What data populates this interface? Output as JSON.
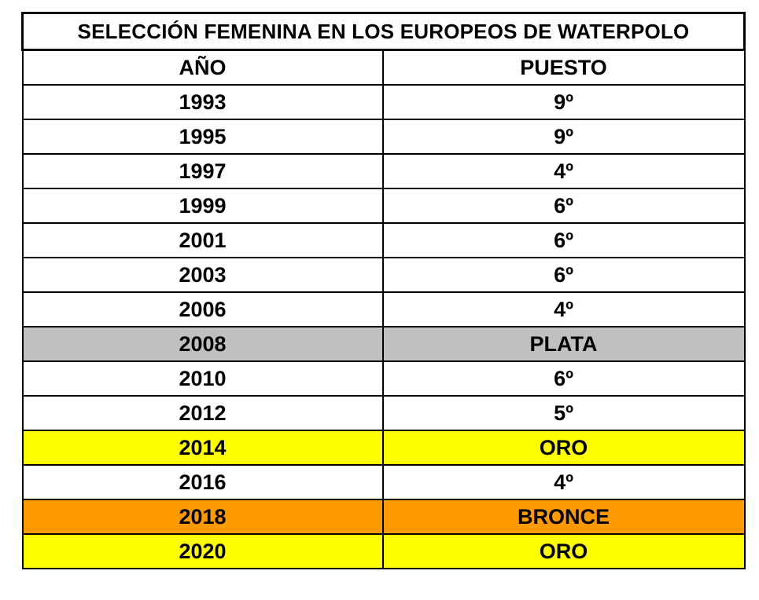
{
  "table": {
    "title": "SELECCIÓN FEMENINA EN LOS EUROPEOS DE WATERPOLO",
    "headers": [
      "AÑO",
      "PUESTO"
    ],
    "rows": [
      {
        "year": "1993",
        "place": "9º",
        "highlight": "#ffffff"
      },
      {
        "year": "1995",
        "place": "9º",
        "highlight": "#ffffff"
      },
      {
        "year": "1997",
        "place": "4º",
        "highlight": "#ffffff"
      },
      {
        "year": "1999",
        "place": "6º",
        "highlight": "#ffffff"
      },
      {
        "year": "2001",
        "place": "6º",
        "highlight": "#ffffff"
      },
      {
        "year": "2003",
        "place": "6º",
        "highlight": "#ffffff"
      },
      {
        "year": "2006",
        "place": "4º",
        "highlight": "#ffffff"
      },
      {
        "year": "2008",
        "place": "PLATA",
        "highlight": "#c0c0c0"
      },
      {
        "year": "2010",
        "place": "6º",
        "highlight": "#ffffff"
      },
      {
        "year": "2012",
        "place": "5º",
        "highlight": "#ffffff"
      },
      {
        "year": "2014",
        "place": "ORO",
        "highlight": "#ffff00"
      },
      {
        "year": "2016",
        "place": "4º",
        "highlight": "#ffffff"
      },
      {
        "year": "2018",
        "place": "BRONCE",
        "highlight": "#ff9900"
      },
      {
        "year": "2020",
        "place": "ORO",
        "highlight": "#ffff00"
      }
    ]
  }
}
